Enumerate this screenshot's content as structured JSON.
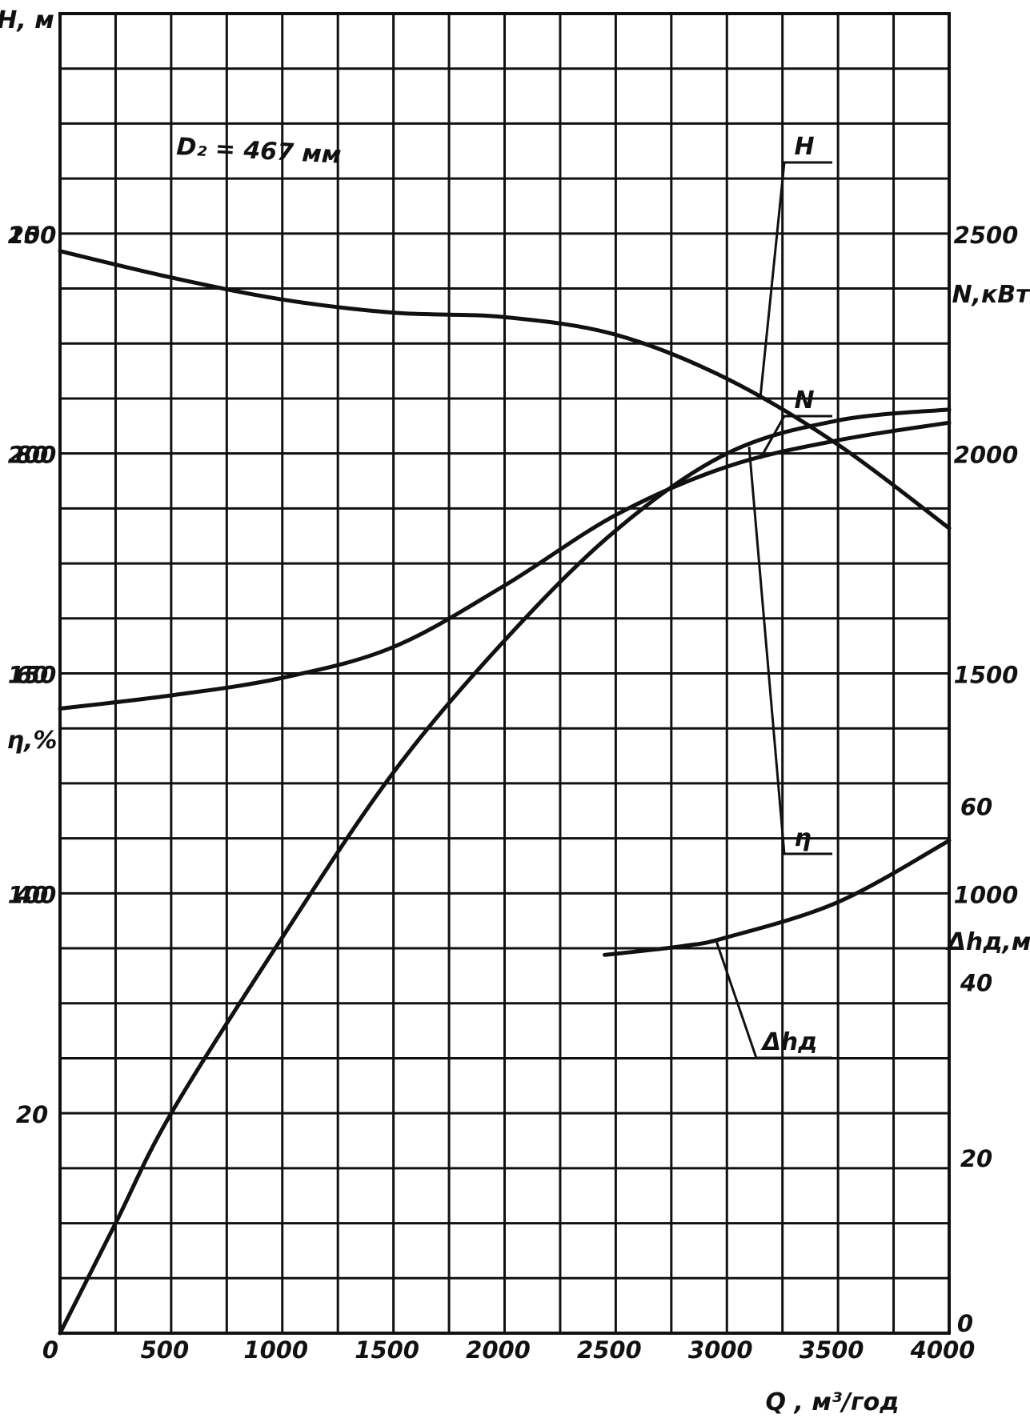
{
  "chart_data": {
    "type": "line",
    "x": {
      "label": "Q , м³/год",
      "range": [
        0,
        4000
      ],
      "ticks": [
        0,
        500,
        1000,
        1500,
        2000,
        2500,
        3000,
        3500,
        4000
      ],
      "tick_labels": [
        "0",
        "500",
        "1000",
        "1500",
        "2000",
        "2500",
        "3000",
        "3500",
        "4000"
      ]
    },
    "axes": {
      "H": {
        "label": "Н, м",
        "range": [
          0,
          300
        ],
        "ticks": [
          150,
          200,
          250
        ],
        "tick_labels": [
          "150",
          "200",
          "250"
        ],
        "side": "left",
        "note": "100 label shown at H=100"
      },
      "eta": {
        "label": "η,%",
        "range": [
          0,
          120
        ],
        "ticks": [
          20,
          40,
          60,
          80,
          100
        ],
        "tick_labels": [
          "20",
          "40",
          "60",
          "80",
          "100"
        ],
        "side": "left"
      },
      "N": {
        "label": "N,кВт",
        "range": [
          0,
          3000
        ],
        "ticks": [
          1000,
          1500,
          2000,
          2500
        ],
        "tick_labels": [
          "1000",
          "1500",
          "2000",
          "2500"
        ],
        "side": "right"
      },
      "dh": {
        "label": "Δhд,м",
        "range": [
          0,
          150
        ],
        "ticks": [
          0,
          20,
          40,
          60
        ],
        "tick_labels": [
          "0",
          "20",
          "40",
          "60"
        ],
        "side": "right"
      }
    },
    "h_label_100": "100",
    "grid": true,
    "series": [
      {
        "name": "Н",
        "axis": "H",
        "annotation": "D₂ = 467 мм",
        "points": [
          [
            0,
            246
          ],
          [
            500,
            240
          ],
          [
            1000,
            235
          ],
          [
            1500,
            232
          ],
          [
            2000,
            231
          ],
          [
            2500,
            227
          ],
          [
            3000,
            217
          ],
          [
            3500,
            202
          ],
          [
            4000,
            183
          ]
        ]
      },
      {
        "name": "N",
        "axis": "N",
        "points": [
          [
            0,
            1420
          ],
          [
            500,
            1450
          ],
          [
            1000,
            1490
          ],
          [
            1500,
            1560
          ],
          [
            2000,
            1700
          ],
          [
            2500,
            1860
          ],
          [
            3000,
            1970
          ],
          [
            3500,
            2030
          ],
          [
            4000,
            2070
          ]
        ]
      },
      {
        "name": "η",
        "axis": "eta",
        "points": [
          [
            0,
            0
          ],
          [
            250,
            10
          ],
          [
            500,
            20
          ],
          [
            1000,
            36
          ],
          [
            1500,
            51
          ],
          [
            2000,
            63
          ],
          [
            2500,
            73
          ],
          [
            3000,
            80
          ],
          [
            3500,
            83
          ],
          [
            4000,
            84
          ]
        ]
      },
      {
        "name": "Δhд",
        "axis": "dh",
        "points": [
          [
            2450,
            43
          ],
          [
            2800,
            44
          ],
          [
            3000,
            45
          ],
          [
            3500,
            49
          ],
          [
            4000,
            56
          ]
        ]
      }
    ]
  }
}
